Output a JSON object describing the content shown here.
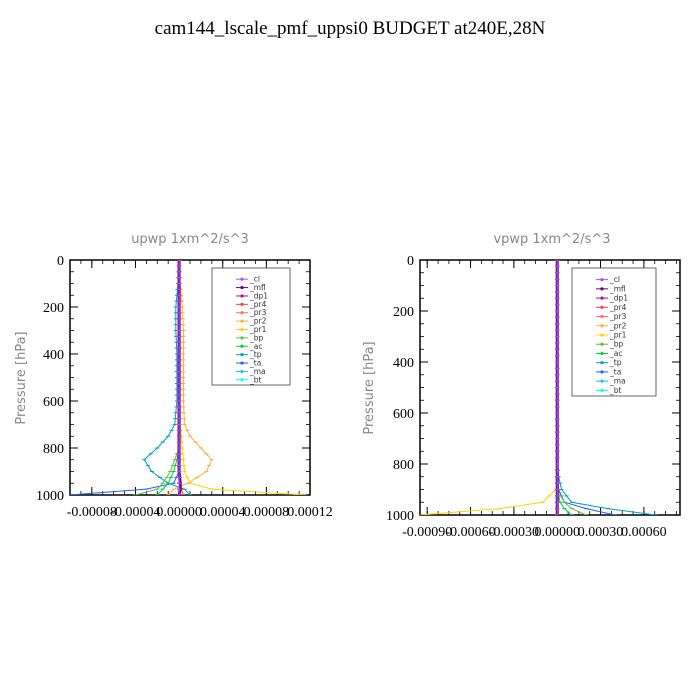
{
  "title": "cam144_lscale_pmf_uppsi0  BUDGET at240E,28N",
  "legend_entries": [
    "_cl",
    "_mfl",
    "_dp1",
    "_pr4",
    "_pr3",
    "_pr2",
    "_pr1",
    "_bp",
    "_ac",
    "_tp",
    "_ta",
    "_ma",
    "_bt"
  ],
  "series_colors": [
    "#b050ff",
    "#6a0080",
    "#c0106a",
    "#ff4040",
    "#ff7070",
    "#ffb040",
    "#ffd400",
    "#60c040",
    "#00d040",
    "#00a0c0",
    "#2060ff",
    "#20c0e0",
    "#00ffff"
  ],
  "chart_data": [
    {
      "type": "line",
      "title": "upwp  1xm^2/s^3",
      "xlabel": "",
      "ylabel": "Pressure [hPa]",
      "xlim": [
        -0.0001,
        0.00012
      ],
      "ylim": [
        1000,
        0
      ],
      "xticks": [
        "-0.00008",
        "-0.00004",
        "0.00000",
        "0.00004",
        "0.00008",
        "0.00012"
      ],
      "xtick_values": [
        -8e-05,
        -4e-05,
        0,
        4e-05,
        8e-05,
        0.00012
      ],
      "yticks": [
        "0",
        "200",
        "400",
        "600",
        "800",
        "1000"
      ],
      "ytick_values": [
        0,
        200,
        400,
        600,
        800,
        1000
      ],
      "legend_position": "top-right",
      "grid": false,
      "pressure": [
        0,
        100,
        200,
        300,
        400,
        500,
        600,
        700,
        750,
        800,
        850,
        900,
        950,
        975,
        1000
      ],
      "series": [
        {
          "name": "_cl",
          "values": [
            0,
            0,
            0,
            0,
            0,
            0,
            0,
            0,
            0,
            0,
            0,
            0,
            0,
            0,
            0
          ]
        },
        {
          "name": "_mfl",
          "values": [
            0,
            0,
            0,
            0,
            0,
            0,
            0,
            0,
            0,
            0,
            0,
            0,
            1e-06,
            1e-06,
            0
          ]
        },
        {
          "name": "_dp1",
          "values": [
            0,
            0,
            0,
            0,
            0,
            0,
            0,
            0,
            0,
            0,
            0,
            0,
            0,
            0,
            0
          ]
        },
        {
          "name": "_pr4",
          "values": [
            0,
            0,
            0,
            0,
            0,
            0,
            0,
            0,
            0,
            0,
            0,
            0,
            0,
            2e-06,
            4e-06
          ]
        },
        {
          "name": "_pr3",
          "values": [
            0,
            0,
            0,
            0,
            0,
            0,
            0,
            0,
            0,
            0,
            0,
            0,
            0,
            0,
            0
          ]
        },
        {
          "name": "_pr2",
          "values": [
            0,
            1e-06,
            3e-06,
            4e-06,
            4e-06,
            4e-06,
            4e-06,
            5e-06,
            1e-05,
            2e-05,
            3e-05,
            2.5e-05,
            8e-06,
            -5e-06,
            -1e-05
          ]
        },
        {
          "name": "_pr1",
          "values": [
            0,
            1e-06,
            1e-06,
            1e-06,
            1e-06,
            1e-06,
            1e-06,
            1e-06,
            2e-06,
            3e-06,
            4e-06,
            5e-06,
            1e-05,
            3e-05,
            0.000115
          ]
        },
        {
          "name": "_bp",
          "values": [
            0,
            0,
            0,
            0,
            0,
            0,
            0,
            0,
            0,
            0,
            -4e-06,
            -8e-06,
            -1.5e-05,
            -2e-05,
            -4e-05
          ]
        },
        {
          "name": "_ac",
          "values": [
            0,
            0,
            0,
            0,
            0,
            0,
            0,
            0,
            0,
            0,
            -2e-06,
            -5e-06,
            -1e-05,
            -1.5e-05,
            -2e-05
          ]
        },
        {
          "name": "_tp",
          "values": [
            0,
            -1e-06,
            -3e-06,
            -3e-06,
            -2e-06,
            -2e-06,
            -2e-06,
            -4e-06,
            -1e-05,
            -2e-05,
            -3.2e-05,
            -2.5e-05,
            -1e-05,
            5e-06,
            1e-05
          ]
        },
        {
          "name": "_ta",
          "values": [
            0,
            0,
            0,
            0,
            0,
            0,
            0,
            0,
            0,
            0,
            0,
            0,
            -5e-06,
            -3e-05,
            -0.0001
          ]
        },
        {
          "name": "_ma",
          "values": [
            0,
            0,
            0,
            0,
            0,
            0,
            0,
            0,
            0,
            0,
            0,
            0,
            0,
            0,
            0
          ]
        },
        {
          "name": "_bt",
          "values": [
            0,
            0,
            0,
            0,
            0,
            0,
            0,
            0,
            0,
            0,
            0,
            0,
            0,
            0,
            0
          ]
        }
      ]
    },
    {
      "type": "line",
      "title": "vpwp  1xm^2/s^3",
      "xlabel": "",
      "ylabel": "Pressure [hPa]",
      "xlim": [
        -0.00095,
        0.00085
      ],
      "ylim": [
        1000,
        0
      ],
      "xticks": [
        "-0.00090",
        "-0.00060",
        "-0.00030",
        "0.00000",
        "0.00030",
        "0.00060"
      ],
      "xtick_values": [
        -0.0009,
        -0.0006,
        -0.0003,
        0,
        0.0003,
        0.0006
      ],
      "yticks": [
        "0",
        "200",
        "400",
        "600",
        "800",
        "1000"
      ],
      "ytick_values": [
        0,
        200,
        400,
        600,
        800,
        1000
      ],
      "legend_position": "top-right",
      "grid": false,
      "pressure": [
        0,
        100,
        200,
        300,
        400,
        500,
        600,
        700,
        800,
        850,
        900,
        950,
        975,
        1000
      ],
      "series": [
        {
          "name": "_cl",
          "values": [
            0,
            0,
            0,
            0,
            0,
            0,
            0,
            0,
            0,
            0,
            0,
            0,
            0,
            0
          ]
        },
        {
          "name": "_mfl",
          "values": [
            0,
            0,
            0,
            0,
            0,
            0,
            0,
            0,
            0,
            0,
            0,
            0,
            0,
            0
          ]
        },
        {
          "name": "_dp1",
          "values": [
            0,
            0,
            0,
            0,
            0,
            0,
            0,
            0,
            0,
            0,
            0,
            0,
            0,
            0
          ]
        },
        {
          "name": "_pr4",
          "values": [
            0,
            0,
            0,
            0,
            0,
            0,
            0,
            0,
            0,
            0,
            0,
            0,
            0,
            0
          ]
        },
        {
          "name": "_pr3",
          "values": [
            0,
            0,
            0,
            0,
            0,
            0,
            0,
            0,
            0,
            0,
            0,
            0,
            0,
            0
          ]
        },
        {
          "name": "_pr2",
          "values": [
            0,
            0,
            0,
            0,
            0,
            0,
            0,
            0,
            0,
            0,
            0,
            0,
            0,
            0
          ]
        },
        {
          "name": "_pr1",
          "values": [
            0,
            0,
            0,
            0,
            0,
            0,
            0,
            0,
            0,
            0,
            -1e-05,
            -0.0001,
            -0.0004,
            -0.00095
          ]
        },
        {
          "name": "_bp",
          "values": [
            0,
            0,
            0,
            0,
            0,
            0,
            0,
            0,
            0,
            0,
            0,
            5e-05,
            0.0001,
            0.0002
          ]
        },
        {
          "name": "_ac",
          "values": [
            0,
            0,
            0,
            0,
            0,
            0,
            0,
            0,
            0,
            0,
            0,
            2e-05,
            5e-05,
            0.0001
          ]
        },
        {
          "name": "_tp",
          "values": [
            0,
            0,
            0,
            0,
            0,
            0,
            0,
            0,
            0,
            1e-05,
            3e-05,
            0.0001,
            0.00035,
            0.00068
          ]
        },
        {
          "name": "_ta",
          "values": [
            0,
            0,
            0,
            0,
            0,
            0,
            0,
            0,
            0,
            0,
            1e-05,
            5e-05,
            0.0002,
            0.0004
          ]
        },
        {
          "name": "_ma",
          "values": [
            0,
            0,
            0,
            0,
            0,
            0,
            0,
            0,
            0,
            0,
            0,
            0,
            0,
            0
          ]
        },
        {
          "name": "_bt",
          "values": [
            0,
            0,
            0,
            0,
            0,
            0,
            0,
            0,
            0,
            0,
            0,
            0,
            0,
            0
          ]
        }
      ]
    }
  ]
}
